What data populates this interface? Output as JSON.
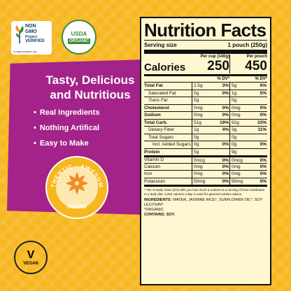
{
  "badges": {
    "non_gmo": {
      "line1": "NON",
      "line2": "GMO",
      "line3": "Project",
      "line4": "VERIFIED",
      "url": "nongmoproject.org"
    },
    "usda": {
      "top": "USDA",
      "bottom": "ORGANIC"
    }
  },
  "headline": {
    "line1": "Tasty, Delicious",
    "line2": "and Nutritious"
  },
  "bullets": [
    "Real Ingredients",
    "Nothing Artifical",
    "Easy to Make"
  ],
  "emblem": {
    "arc_text": "AUTHENTIC · AWESOME ·",
    "center": "INDIAN",
    "icon": "star-flower-icon"
  },
  "vegan": {
    "letter": "V",
    "text": "VEGAN"
  },
  "colors": {
    "background": "#f7b71f",
    "purple": "#a3238a",
    "panel": "#fff7d1"
  },
  "nutrition": {
    "title": "Nutrition Facts",
    "serving_label": "Serving size",
    "serving_value": "1 pouch (250g)",
    "calories_label": "Calories",
    "col1_head": "Per cup (140g)",
    "col2_head": "Per pouch",
    "col1_calories": "250",
    "col2_calories": "450",
    "dv_head": "% DV*",
    "rows": [
      {
        "label": "Total Fat",
        "c1": "2.5g",
        "p1": "3%",
        "c2": "5g",
        "p2": "6%",
        "style": "bold"
      },
      {
        "label": "Saturated Fat",
        "c1": "0g",
        "p1": "0%",
        "c2": "1g",
        "p2": "5%",
        "style": "indent"
      },
      {
        "label": "Trans Fat",
        "c1": "0g",
        "p1": "",
        "c2": "0g",
        "p2": "",
        "style": "indent"
      },
      {
        "label": "Cholesterol",
        "c1": "0mg",
        "p1": "0%",
        "c2": "0mg",
        "p2": "0%",
        "style": "bold"
      },
      {
        "label": "Sodium",
        "c1": "0mg",
        "p1": "0%",
        "c2": "0mg",
        "p2": "0%",
        "style": "bold"
      },
      {
        "label": "Total Carb.",
        "c1": "51g",
        "p1": "19%",
        "c2": "92g",
        "p2": "33%",
        "style": "bold"
      },
      {
        "label": "Dietary Fiber",
        "c1": "1g",
        "p1": "4%",
        "c2": "3g",
        "p2": "11%",
        "style": "indent"
      },
      {
        "label": "Total Sugars",
        "c1": "0g",
        "p1": "",
        "c2": "0g",
        "p2": "",
        "style": "indent"
      },
      {
        "label": "Incl. Added Sugars",
        "c1": "0g",
        "p1": "0%",
        "c2": "0g",
        "p2": "0%",
        "style": "indent2"
      },
      {
        "label": "Protein",
        "c1": "5g",
        "p1": "",
        "c2": "9g",
        "p2": "",
        "style": "bold"
      },
      {
        "label": "Vitamin D",
        "c1": "0mcg",
        "p1": "0%",
        "c2": "0mcg",
        "p2": "0%",
        "style": "sep"
      },
      {
        "label": "Calcium",
        "c1": "0mg",
        "p1": "0%",
        "c2": "0mg",
        "p2": "0%",
        "style": ""
      },
      {
        "label": "Iron",
        "c1": "0mg",
        "p1": "0%",
        "c2": "0mg",
        "p2": "0%",
        "style": ""
      },
      {
        "label": "Potassium",
        "c1": "50mg",
        "p1": "0%",
        "c2": "90mg",
        "p2": "0%",
        "style": ""
      }
    ],
    "footnote": "* The % Daily Value (DV) tells you how much a nutrient in a serving of food contributes to a daily diet. 2,000 calories a day is used for general nutrition advice.",
    "ingredients_label": "INGREDIENTS:",
    "ingredients": "WATER, JASMINE RICE*, SUNFLOWER OIL*, SOY LECITHIN*.",
    "organic_note": "*ORGANIC",
    "contains_label": "CONTAINS:",
    "contains": "SOY."
  }
}
